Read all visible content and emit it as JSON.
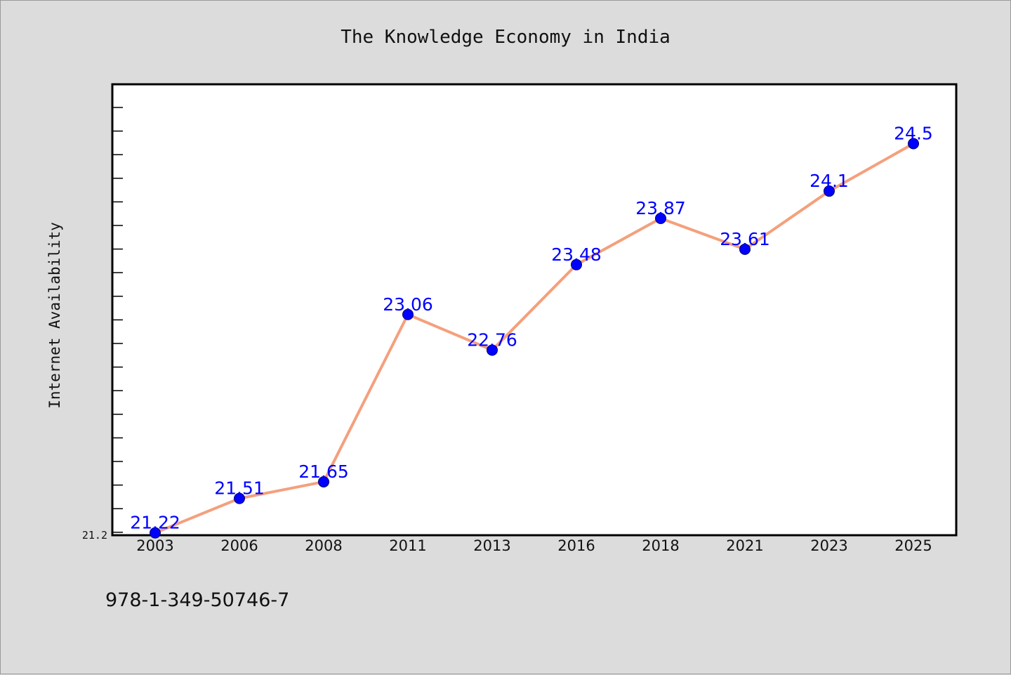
{
  "footer_code": "978-1-349-50746-7",
  "colors": {
    "background": "#dcdcdc",
    "plot_background": "#ffffff",
    "line": "#f4a07c",
    "marker": "#0000ff",
    "data_label": "#0000ff"
  },
  "chart_data": {
    "type": "line",
    "title": "The Knowledge Economy in India",
    "xlabel": "",
    "ylabel": "Internet Availability",
    "categories": [
      "2003",
      "2006",
      "2008",
      "2011",
      "2013",
      "2016",
      "2018",
      "2021",
      "2023",
      "2025"
    ],
    "series": [
      {
        "values": [
          21.22,
          21.51,
          21.65,
          23.06,
          22.76,
          23.48,
          23.87,
          23.61,
          24.1,
          24.5
        ],
        "labels": [
          "21.22",
          "21.51",
          "21.65",
          "23.06",
          "22.76",
          "23.48",
          "23.87",
          "23.61",
          "24.1",
          "24.5"
        ]
      }
    ],
    "yticks": [
      "21.2"
    ],
    "ylim": [
      21.2,
      25.0
    ],
    "grid": false,
    "legend": "none"
  }
}
